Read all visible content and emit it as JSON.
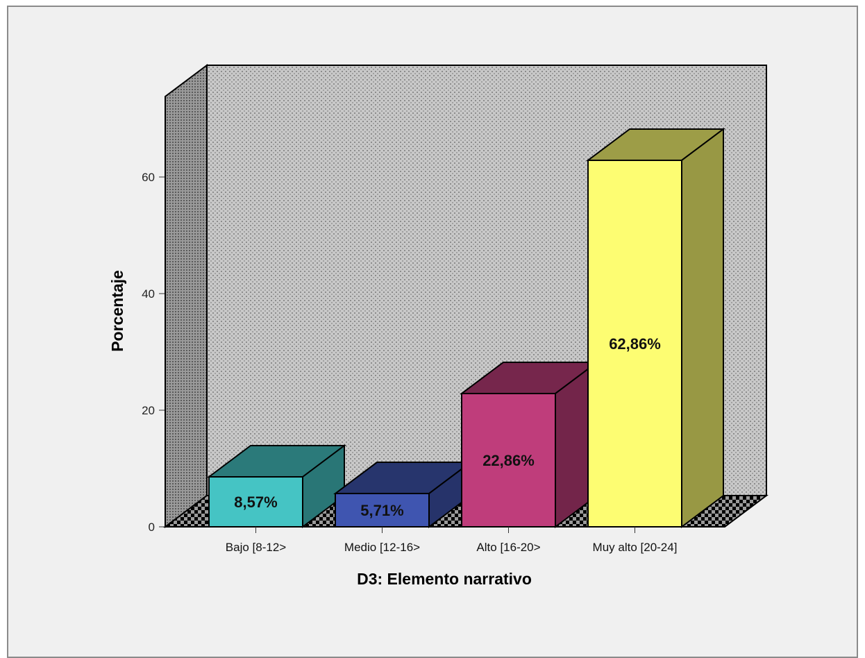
{
  "chart_data": {
    "type": "bar",
    "title": "",
    "xlabel": "D3: Elemento narrativo",
    "ylabel": "Porcentaje",
    "ylim": [
      0,
      70
    ],
    "yticks": [
      "0",
      "20",
      "40",
      "60"
    ],
    "categories": [
      "Bajo [8-12>",
      "Medio [12-16>",
      "Alto [16-20>",
      "Muy alto [20-24]"
    ],
    "values": [
      8.57,
      5.71,
      22.86,
      62.86
    ],
    "data_labels": [
      "8,57%",
      "5,71%",
      "22,86%",
      "62,86%"
    ],
    "colors": [
      "#45c4c4",
      "#3f55b0",
      "#bf3d7b",
      "#fdfd72"
    ],
    "style": "3d",
    "grid": false
  }
}
